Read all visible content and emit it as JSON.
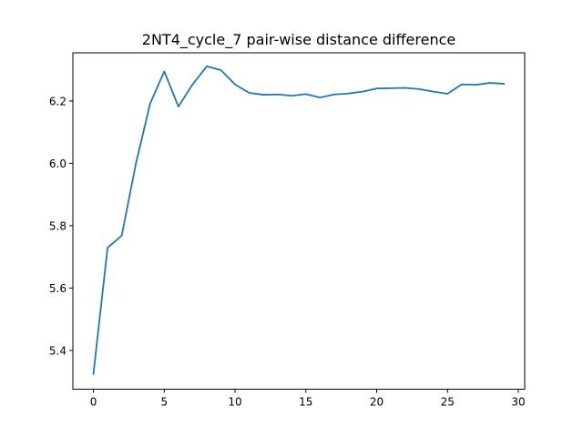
{
  "chart_data": {
    "type": "line",
    "title": "2NT4_cycle_7 pair-wise distance difference",
    "xlabel": "",
    "ylabel": "",
    "xlim": [
      -1.45,
      30.45
    ],
    "ylim": [
      5.2755,
      6.3545
    ],
    "xticks": [
      0,
      5,
      10,
      15,
      20,
      25,
      30
    ],
    "yticks": [
      5.4,
      5.6,
      5.8,
      6.0,
      6.2
    ],
    "x_tick_labels": [
      "0",
      "5",
      "10",
      "15",
      "20",
      "25",
      "30"
    ],
    "y_tick_labels": [
      "5.4",
      "5.6",
      "5.8",
      "6.0",
      "6.2"
    ],
    "grid": false,
    "series": [
      {
        "color": "#1f77b4",
        "x": [
          0,
          1,
          2,
          3,
          4,
          5,
          6,
          7,
          8,
          9,
          10,
          11,
          12,
          13,
          14,
          15,
          16,
          17,
          18,
          19,
          20,
          21,
          22,
          23,
          24,
          25,
          26,
          27,
          28,
          29
        ],
        "y": [
          5.324,
          5.729,
          5.768,
          5.999,
          6.191,
          6.295,
          6.182,
          6.253,
          6.311,
          6.299,
          6.253,
          6.226,
          6.22,
          6.221,
          6.217,
          6.222,
          6.211,
          6.221,
          6.224,
          6.23,
          6.24,
          6.241,
          6.242,
          6.238,
          6.23,
          6.223,
          6.253,
          6.252,
          6.258,
          6.255
        ]
      }
    ]
  }
}
